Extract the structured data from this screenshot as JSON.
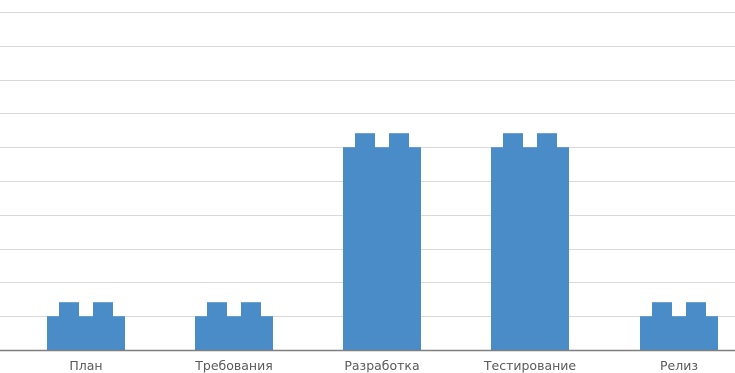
{
  "chart_data": {
    "type": "bar",
    "style": "lego-brick pictogram bars",
    "categories": [
      "План",
      "Требования",
      "Разработка",
      "Тестирование",
      "Релиз"
    ],
    "values": [
      1,
      1,
      6,
      6,
      1
    ],
    "ylim": [
      0,
      10
    ],
    "grid": true,
    "bar_color": "#4a8cc8",
    "title": "",
    "xlabel": "",
    "ylabel": ""
  }
}
